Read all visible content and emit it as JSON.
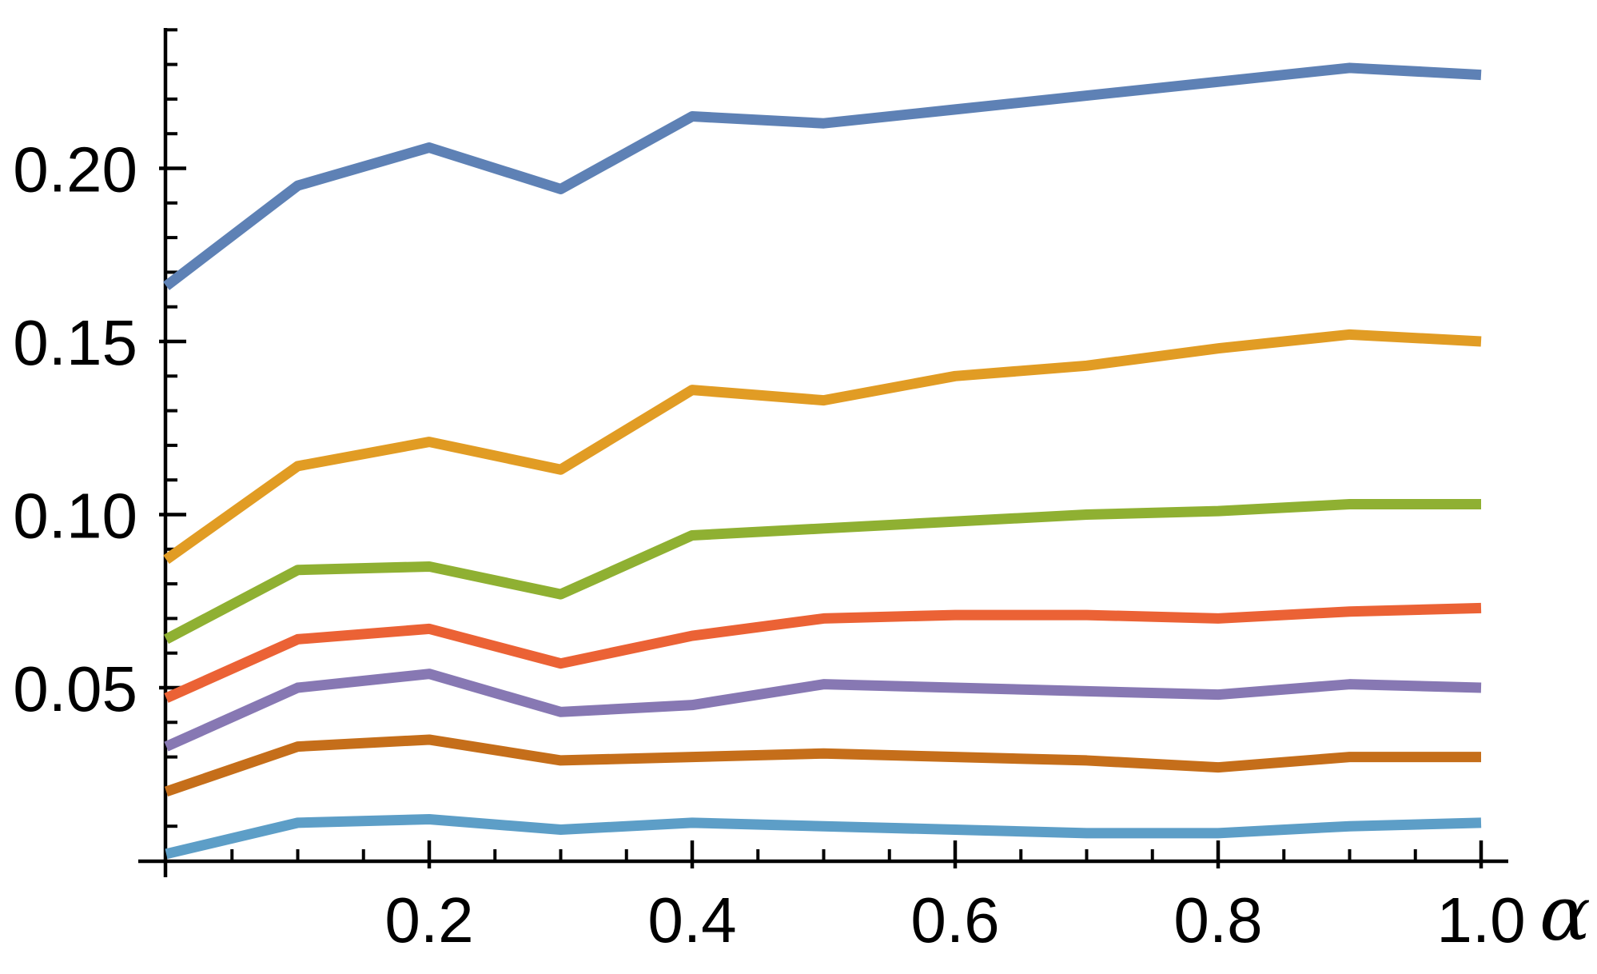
{
  "chart_data": {
    "type": "line",
    "title": "",
    "xlabel": "α",
    "ylabel": "",
    "grid": false,
    "legend": "none",
    "xlim": [
      0,
      1.02
    ],
    "ylim": [
      0,
      0.2405
    ],
    "x": [
      0,
      0.1,
      0.2,
      0.3,
      0.4,
      0.5,
      0.6,
      0.7,
      0.8,
      0.9,
      1.0
    ],
    "x_major_ticks": [
      0.2,
      0.4,
      0.6,
      0.8,
      1.0
    ],
    "x_tick_labels": [
      "0.2",
      "0.4",
      "0.6",
      "0.8",
      "1.0"
    ],
    "x_minor_tick_step": 0.05,
    "y_major_ticks": [
      0.05,
      0.1,
      0.15,
      0.2
    ],
    "y_tick_labels": [
      "0.05",
      "0.10",
      "0.15",
      "0.20"
    ],
    "y_minor_tick_step": 0.01,
    "axis_color": "#000000",
    "series": [
      {
        "name": "series-1-blue",
        "color": "#5E81B5",
        "values": [
          0.166,
          0.195,
          0.206,
          0.194,
          0.215,
          0.213,
          0.217,
          0.221,
          0.225,
          0.229,
          0.227
        ]
      },
      {
        "name": "series-2-orange",
        "color": "#E19C24",
        "values": [
          0.087,
          0.114,
          0.121,
          0.113,
          0.136,
          0.133,
          0.14,
          0.143,
          0.148,
          0.152,
          0.15
        ]
      },
      {
        "name": "series-3-green",
        "color": "#8FB032",
        "values": [
          0.064,
          0.084,
          0.085,
          0.077,
          0.094,
          0.096,
          0.098,
          0.1,
          0.101,
          0.103,
          0.103
        ]
      },
      {
        "name": "series-4-red",
        "color": "#EB6235",
        "values": [
          0.047,
          0.064,
          0.067,
          0.057,
          0.065,
          0.07,
          0.071,
          0.071,
          0.07,
          0.072,
          0.073
        ]
      },
      {
        "name": "series-5-purple",
        "color": "#8778B3",
        "values": [
          0.033,
          0.05,
          0.054,
          0.043,
          0.045,
          0.051,
          0.05,
          0.049,
          0.048,
          0.051,
          0.05
        ]
      },
      {
        "name": "series-6-brown",
        "color": "#C56E1A",
        "values": [
          0.02,
          0.033,
          0.035,
          0.029,
          0.03,
          0.031,
          0.03,
          0.029,
          0.027,
          0.03,
          0.03
        ]
      },
      {
        "name": "series-7-lightblue",
        "color": "#5D9EC7",
        "values": [
          0.002,
          0.011,
          0.012,
          0.009,
          0.011,
          0.01,
          0.009,
          0.008,
          0.008,
          0.01,
          0.011
        ]
      }
    ]
  }
}
